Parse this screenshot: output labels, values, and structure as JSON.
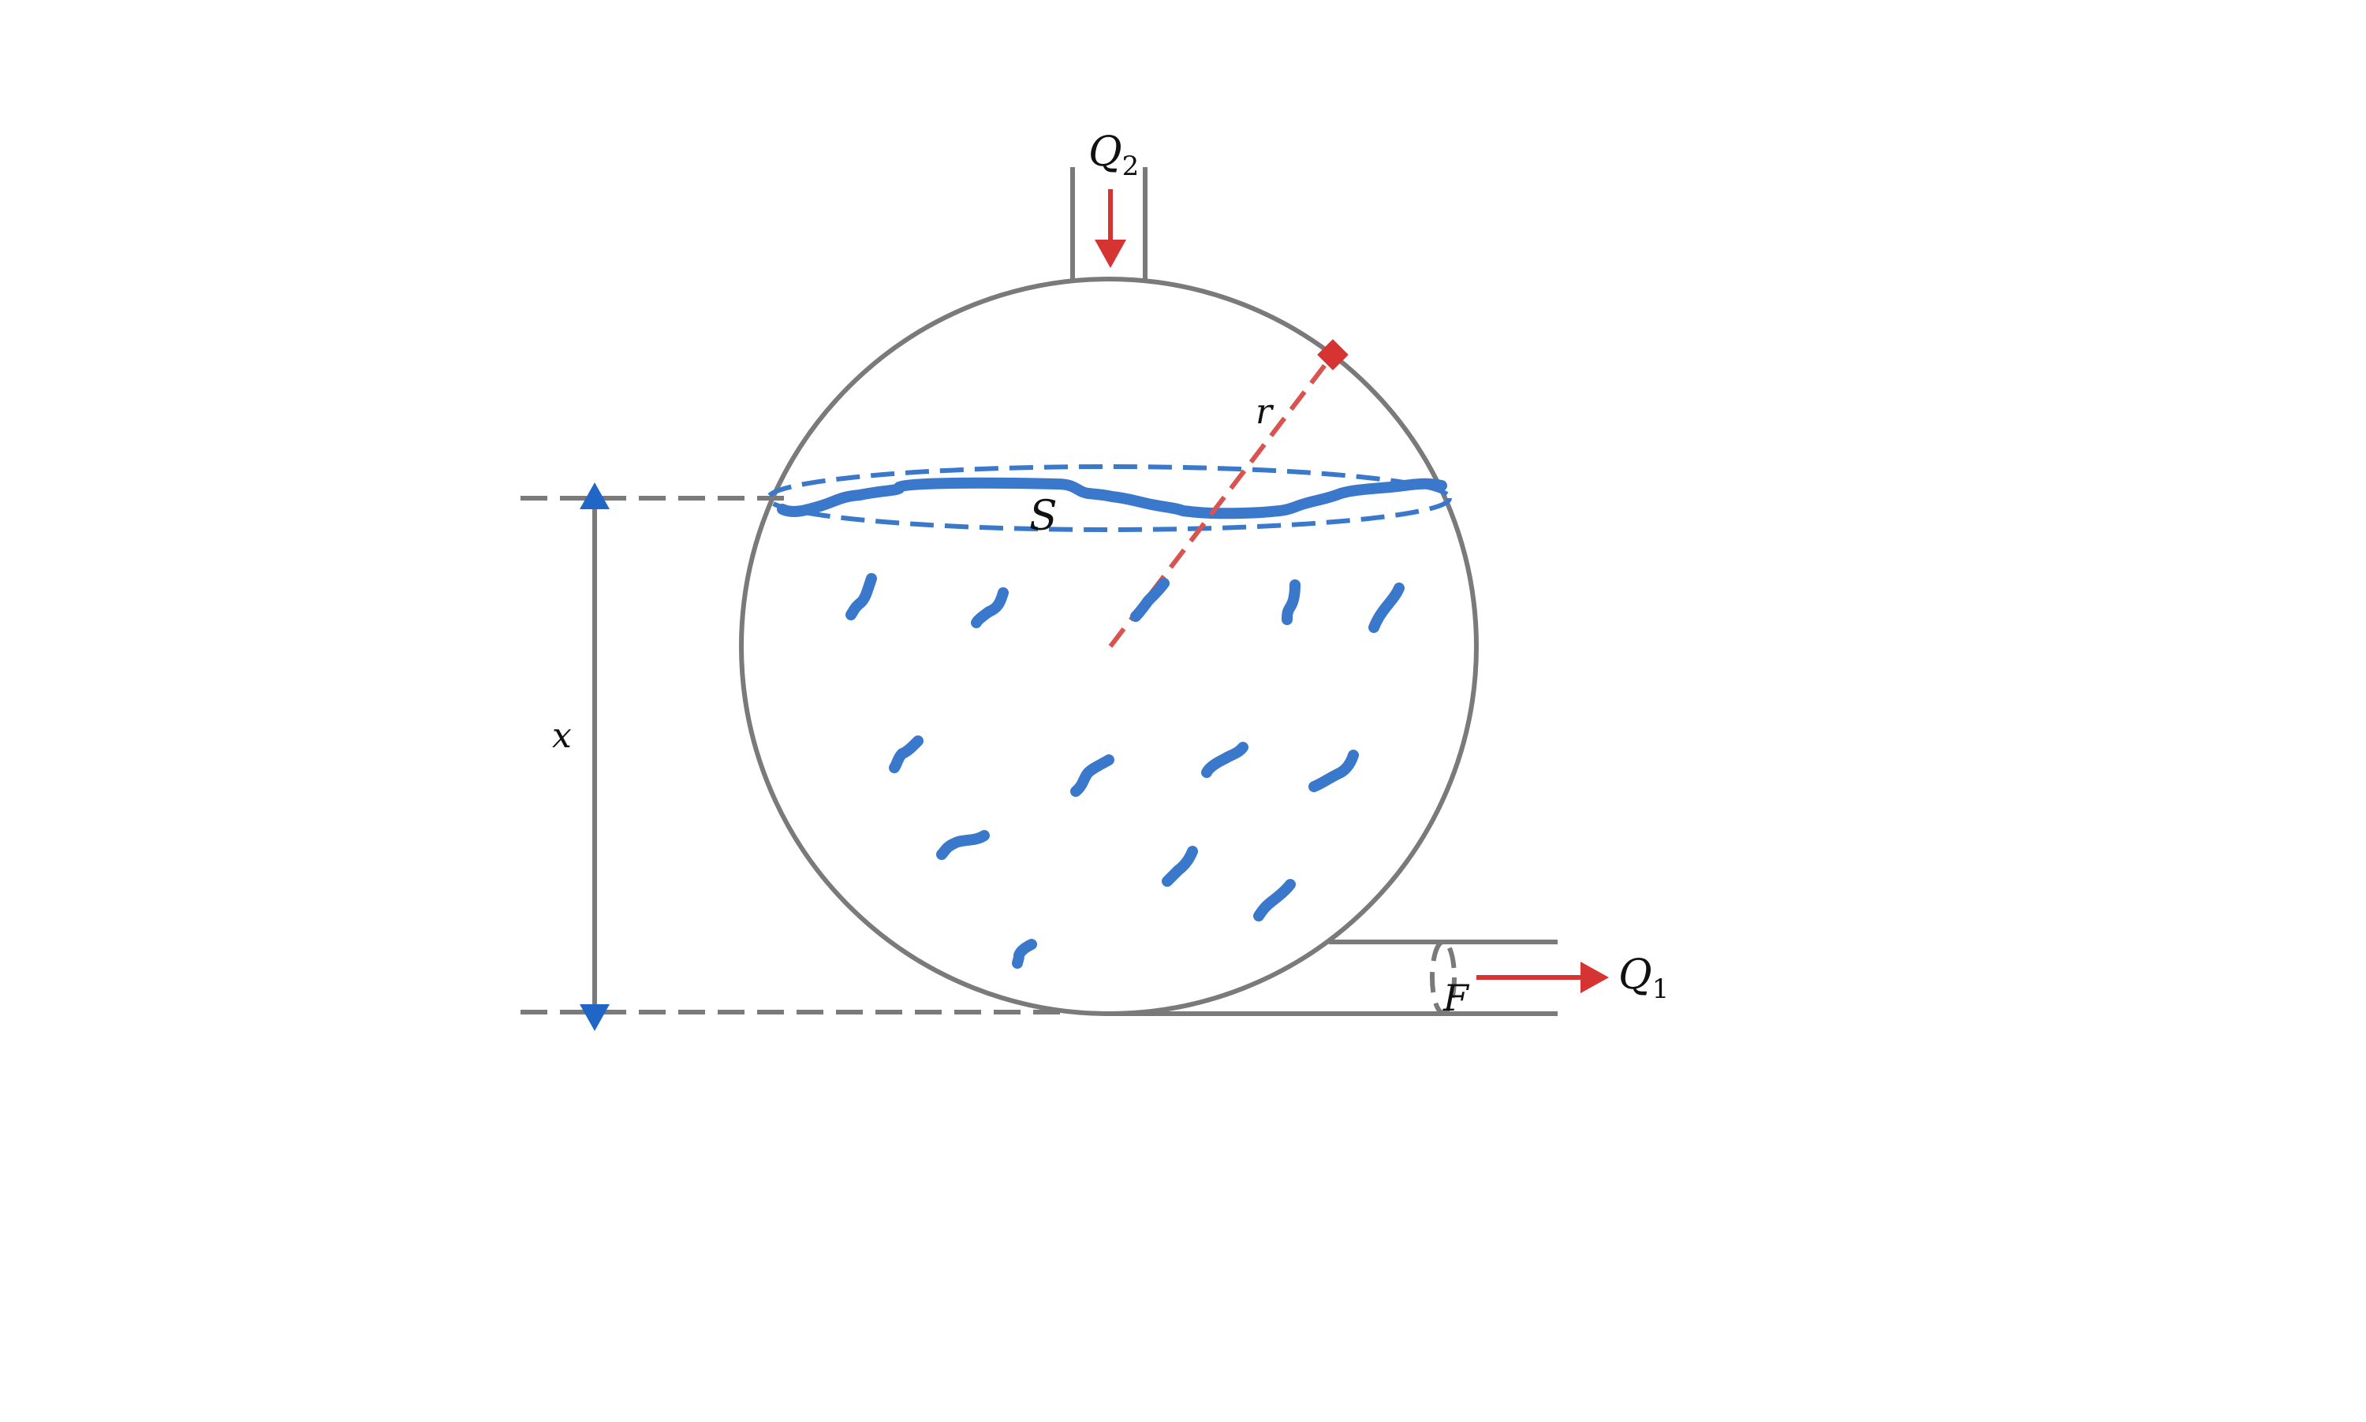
{
  "labels": {
    "inflow": {
      "symbol": "Q",
      "subscript": "2"
    },
    "outflow": {
      "symbol": "Q",
      "subscript": "1"
    },
    "radius": "r",
    "surface": "S",
    "outlet_area": "F",
    "height": "x"
  },
  "colors": {
    "outline": "#7a7a7a",
    "water": "#3a78cc",
    "arrow": "#d63333",
    "dimension_arrow": "#1f66c7",
    "text": "#111111"
  }
}
